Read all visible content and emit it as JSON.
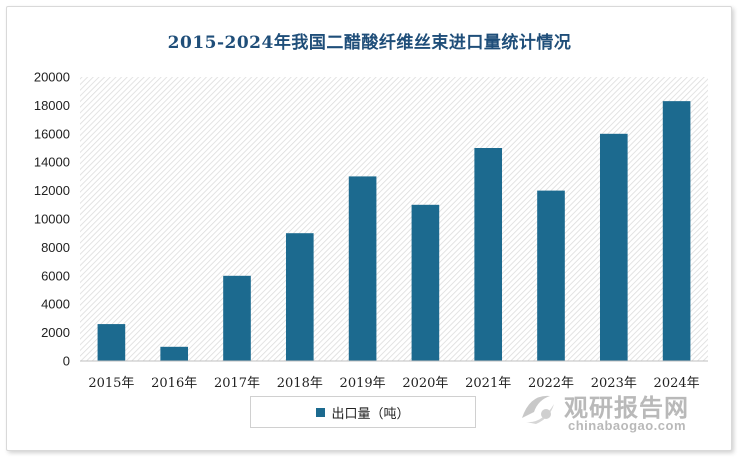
{
  "chart_data": {
    "type": "bar",
    "title": "2015-2024年我国二醋酸纤维丝束进口量统计情况",
    "categories": [
      "2015年",
      "2016年",
      "2017年",
      "2018年",
      "2019年",
      "2020年",
      "2021年",
      "2022年",
      "2023年",
      "2024年"
    ],
    "series": [
      {
        "name": "出口量（吨）",
        "values": [
          2600,
          1000,
          6000,
          9000,
          13000,
          11000,
          15000,
          12000,
          16000,
          18300
        ]
      }
    ],
    "ylim": [
      0,
      20000
    ],
    "yticks": [
      0,
      2000,
      4000,
      6000,
      8000,
      10000,
      12000,
      14000,
      16000,
      18000,
      20000
    ],
    "legend_position": "bottom",
    "grid": false,
    "bar_color": "#1c6a8f"
  },
  "watermark": {
    "cn": "观研报告网",
    "en": "chinabaogao.com"
  }
}
